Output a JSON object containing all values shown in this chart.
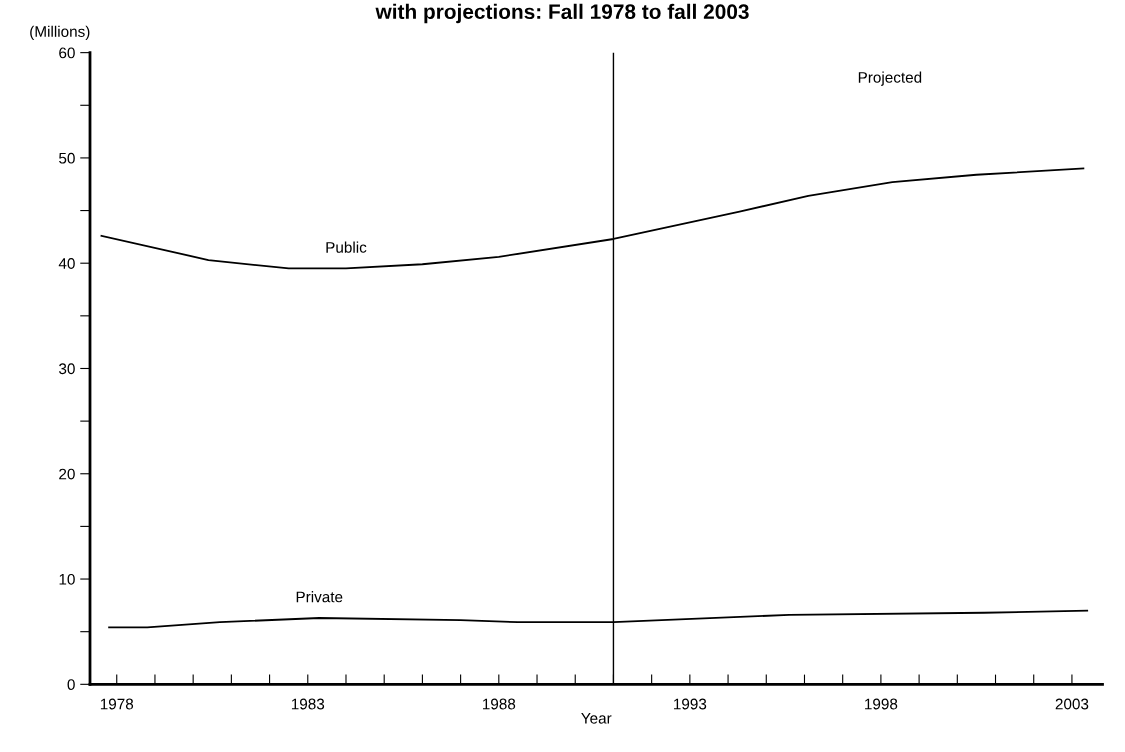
{
  "chart_data": {
    "type": "line",
    "title": "with projections: Fall 1978 to fall 2003",
    "xlabel": "Year",
    "ylabel": "(Millions)",
    "xlim": [
      1977.3,
      2003.8
    ],
    "ylim": [
      0,
      60
    ],
    "xticks": [
      {
        "value": 1978,
        "label": "1978"
      },
      {
        "value": 1979,
        "label": null
      },
      {
        "value": 1980,
        "label": null
      },
      {
        "value": 1981,
        "label": null
      },
      {
        "value": 1982,
        "label": null
      },
      {
        "value": 1983,
        "label": "1983"
      },
      {
        "value": 1984,
        "label": null
      },
      {
        "value": 1985,
        "label": null
      },
      {
        "value": 1986,
        "label": null
      },
      {
        "value": 1987,
        "label": null
      },
      {
        "value": 1988,
        "label": "1988"
      },
      {
        "value": 1989,
        "label": null
      },
      {
        "value": 1990,
        "label": null
      },
      {
        "value": 1991,
        "label": null
      },
      {
        "value": 1992,
        "label": null
      },
      {
        "value": 1993,
        "label": "1993"
      },
      {
        "value": 1994,
        "label": null
      },
      {
        "value": 1995,
        "label": null
      },
      {
        "value": 1996,
        "label": null
      },
      {
        "value": 1997,
        "label": null
      },
      {
        "value": 1998,
        "label": "1998"
      },
      {
        "value": 1999,
        "label": null
      },
      {
        "value": 2000,
        "label": null
      },
      {
        "value": 2001,
        "label": null
      },
      {
        "value": 2002,
        "label": null
      },
      {
        "value": 2003,
        "label": "2003"
      }
    ],
    "yticks": [
      0,
      {
        "value": 5,
        "label": null
      },
      10,
      {
        "value": 15,
        "label": null
      },
      20,
      {
        "value": 25,
        "label": null
      },
      30,
      {
        "value": 35,
        "label": null
      },
      40,
      {
        "value": 45,
        "label": null
      },
      50,
      {
        "value": 55,
        "label": null
      },
      60
    ],
    "series": [
      {
        "name": "Public",
        "color": "#000000",
        "x": [
          1977.6,
          1980.4,
          1982.5,
          1984,
          1986,
          1988,
          1991,
          1994.3,
          1996.1,
          1998.3,
          2000.5,
          2003.3
        ],
        "values": [
          42.6,
          40.3,
          39.5,
          39.5,
          39.9,
          40.6,
          42.3,
          44.9,
          46.4,
          47.7,
          48.4,
          49.0
        ]
      },
      {
        "name": "Private",
        "color": "#000000",
        "x": [
          1977.8,
          1978.8,
          1980.7,
          1983.3,
          1987,
          1988.5,
          1991,
          1995.6,
          2000.7,
          2003.4
        ],
        "values": [
          5.4,
          5.4,
          5.9,
          6.3,
          6.1,
          5.9,
          5.9,
          6.6,
          6.8,
          7.0
        ]
      }
    ],
    "ref_lines": [
      {
        "axis": "x",
        "value": 1991,
        "color": "#000000"
      }
    ],
    "annotations": [
      "Projected"
    ],
    "grid": false,
    "legend": false,
    "marker": "none",
    "line_style": "solid"
  }
}
